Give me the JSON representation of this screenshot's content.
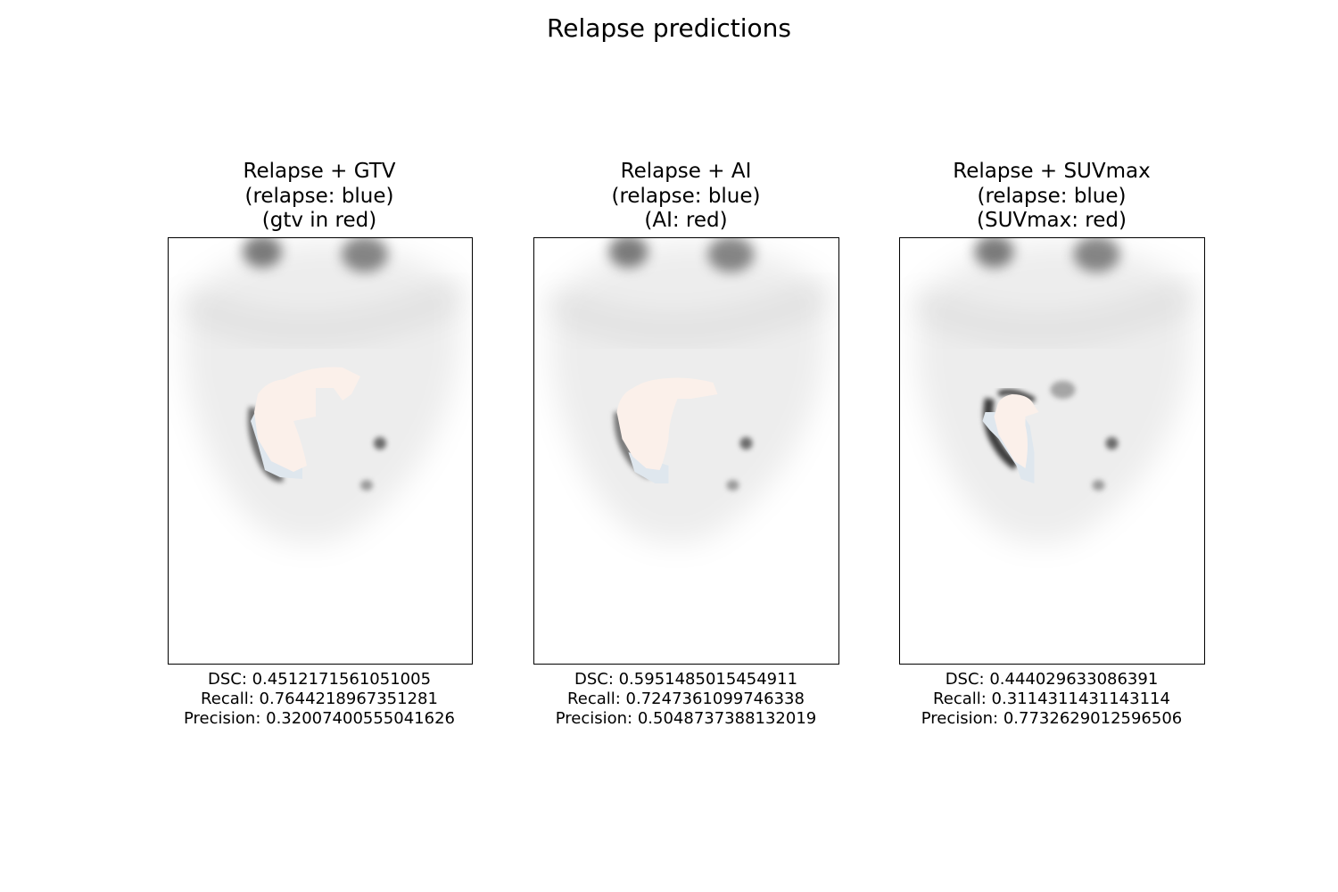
{
  "figure": {
    "title": "Relapse predictions"
  },
  "panels": [
    {
      "title": [
        "Relapse + GTV",
        "(relapse: blue)",
        "(gtv in red)"
      ],
      "metrics": {
        "dsc": "DSC: 0.4512171561051005",
        "recall": "Recall: 0.7644218967351281",
        "precision": "Precision: 0.32007400555041626"
      }
    },
    {
      "title": [
        "Relapse + AI",
        "(relapse: blue)",
        "(AI: red)"
      ],
      "metrics": {
        "dsc": "DSC: 0.5951485015454911",
        "recall": "Recall: 0.7247361099746338",
        "precision": "Precision: 0.5048737388132019"
      }
    },
    {
      "title": [
        "Relapse + SUVmax",
        "(relapse: blue)",
        "(SUVmax: red)"
      ],
      "metrics": {
        "dsc": "DSC: 0.444029633086391",
        "recall": "Recall: 0.3114311431143114",
        "precision": "Precision: 0.7732629012596506"
      }
    }
  ],
  "colors": {
    "relapse": "#dfe7ee",
    "overlay": "#fbf0ea",
    "pet": "#000000"
  }
}
